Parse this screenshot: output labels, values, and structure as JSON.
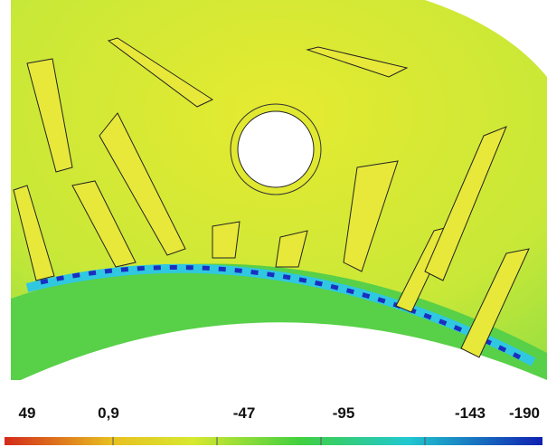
{
  "colorbar": {
    "labels": [
      "49",
      "0,9",
      "-47",
      "-95",
      "-143",
      "-190"
    ]
  }
}
